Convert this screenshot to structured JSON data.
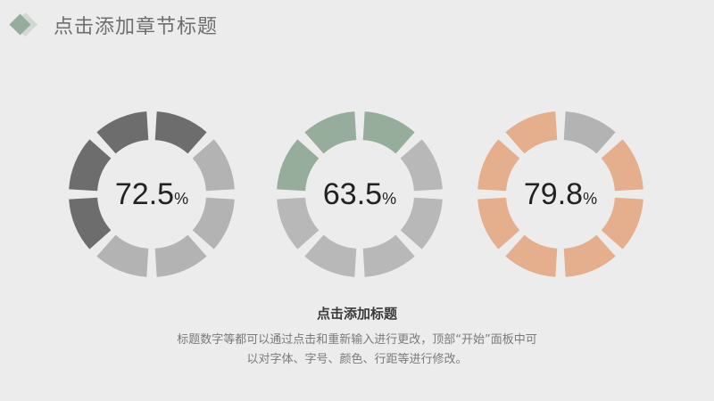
{
  "header": {
    "title": "点击添加章节标题"
  },
  "chart_data": {
    "type": "pie",
    "charts": [
      {
        "value": 72.5,
        "label": "72.5",
        "unit": "%",
        "segments": 8,
        "colors": [
          "#6d6d6d",
          "#b3b3b3"
        ],
        "pattern": [
          "d",
          "l",
          "l",
          "l",
          "l",
          "d",
          "d",
          "d"
        ]
      },
      {
        "value": 63.5,
        "label": "63.5",
        "unit": "%",
        "segments": 8,
        "colors": [
          "#96ad9c",
          "#b8b8b8"
        ],
        "pattern": [
          "g",
          "l",
          "l",
          "l",
          "l",
          "l",
          "g",
          "g"
        ]
      },
      {
        "value": 79.8,
        "label": "79.8",
        "unit": "%",
        "segments": 8,
        "colors": [
          "#e5ae8c",
          "#b3b3b3"
        ],
        "pattern": [
          "l",
          "o",
          "o",
          "o",
          "o",
          "o",
          "o",
          "o"
        ]
      }
    ]
  },
  "caption": {
    "title": "点击添加标题",
    "line1": "标题数字等都可以通过点击和重新输入进行更改，顶部“开始”面板中可",
    "line2": "以对字体、字号、颜色、行距等进行修改。"
  }
}
